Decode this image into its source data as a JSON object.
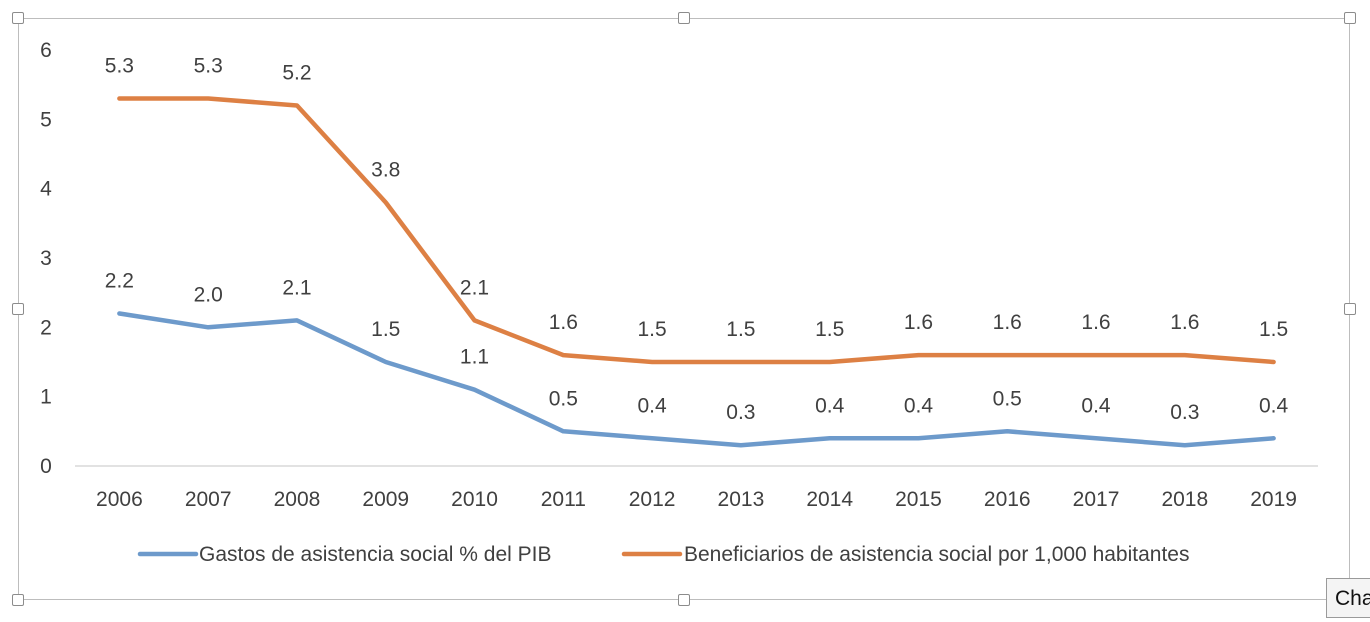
{
  "chart_data": {
    "type": "line",
    "title": "",
    "xlabel": "",
    "ylabel": "",
    "ylim": [
      0,
      6
    ],
    "y_ticks": [
      "0",
      "1",
      "2",
      "3",
      "4",
      "5",
      "6"
    ],
    "grid": false,
    "legend_position": "bottom",
    "categories": [
      "2006",
      "2007",
      "2008",
      "2009",
      "2010",
      "2011",
      "2012",
      "2013",
      "2014",
      "2015",
      "2016",
      "2017",
      "2018",
      "2019"
    ],
    "series": [
      {
        "name": "Gastos de asistencia social % del PIB",
        "color": "#6d9acb",
        "values": [
          2.2,
          2.0,
          2.1,
          1.5,
          1.1,
          0.5,
          0.4,
          0.3,
          0.4,
          0.4,
          0.5,
          0.4,
          0.3,
          0.4
        ],
        "labels": [
          "2.2",
          "2.0",
          "2.1",
          "1.5",
          "1.1",
          "0.5",
          "0.4",
          "0.3",
          "0.4",
          "0.4",
          "0.5",
          "0.4",
          "0.3",
          "0.4"
        ]
      },
      {
        "name": "Beneficiarios de asistencia social por 1,000 habitantes",
        "color": "#dd8044",
        "values": [
          5.3,
          5.3,
          5.2,
          3.8,
          2.1,
          1.6,
          1.5,
          1.5,
          1.5,
          1.6,
          1.6,
          1.6,
          1.6,
          1.5
        ],
        "labels": [
          "5.3",
          "5.3",
          "5.2",
          "3.8",
          "2.1",
          "1.6",
          "1.5",
          "1.5",
          "1.5",
          "1.6",
          "1.6",
          "1.6",
          "1.6",
          "1.5"
        ]
      }
    ]
  },
  "tooltip": {
    "text": "Cha"
  }
}
